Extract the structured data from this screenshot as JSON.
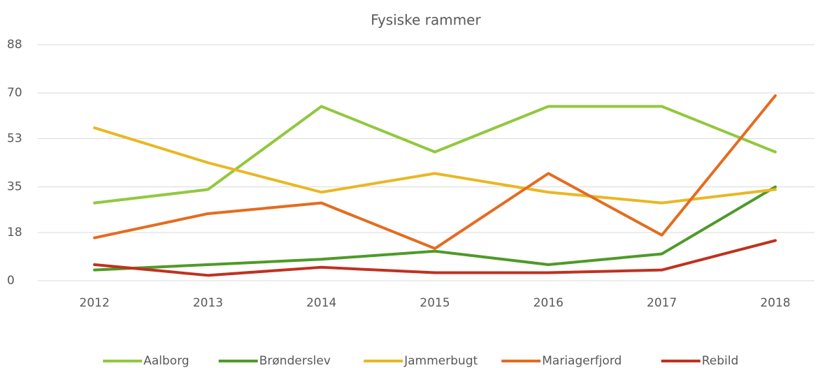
{
  "chart_data": {
    "type": "line",
    "title": "Fysiske rammer",
    "categories": [
      "2012",
      "2013",
      "2014",
      "2015",
      "2016",
      "2017",
      "2018"
    ],
    "series": [
      {
        "name": "Aalborg",
        "color": "#92c83e",
        "values": [
          29,
          34,
          65,
          48,
          65,
          65,
          48
        ]
      },
      {
        "name": "Brønderslev",
        "color": "#4e9a29",
        "values": [
          4,
          6,
          8,
          11,
          6,
          10,
          35
        ]
      },
      {
        "name": "Jammerbugt",
        "color": "#e8b824",
        "values": [
          57,
          44,
          33,
          40,
          33,
          29,
          34
        ]
      },
      {
        "name": "Mariagerfjord",
        "color": "#e46c1f",
        "values": [
          16,
          25,
          29,
          12,
          40,
          17,
          69
        ]
      },
      {
        "name": "Rebild",
        "color": "#c0311f",
        "values": [
          6,
          2,
          5,
          3,
          3,
          4,
          15
        ]
      }
    ],
    "ylim": [
      0,
      88
    ],
    "yticks": [
      0,
      18,
      35,
      53,
      70,
      88
    ],
    "grid": true,
    "legend": "bottom"
  }
}
